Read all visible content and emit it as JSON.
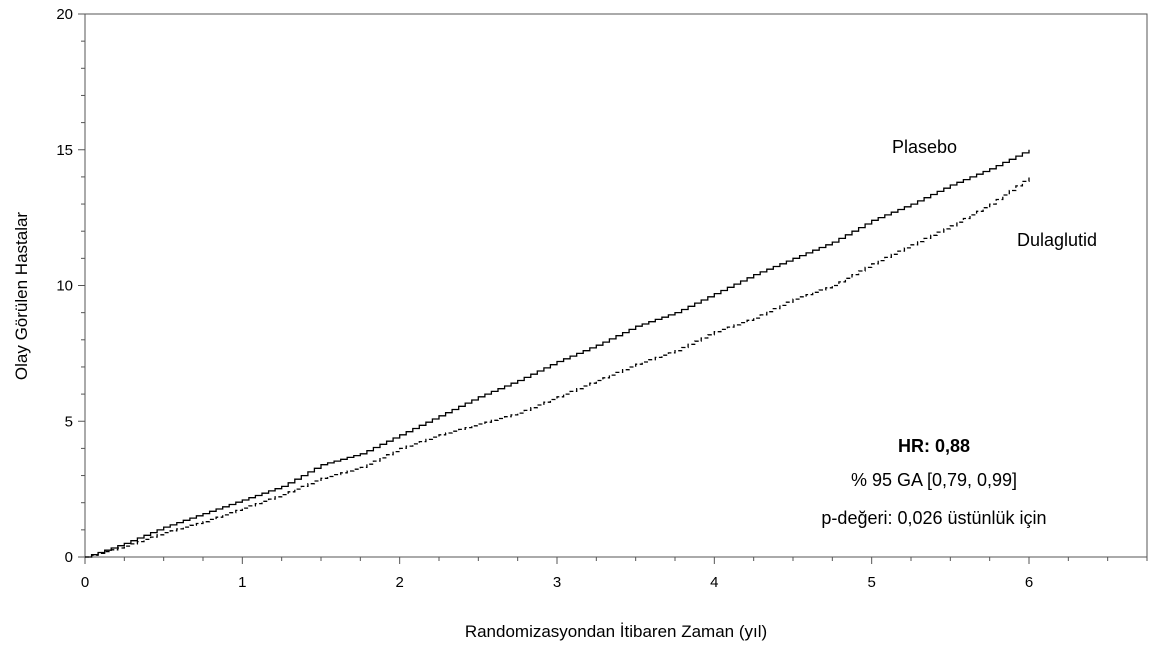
{
  "chart_data": {
    "type": "line",
    "xlabel": "Randomizasyondan İtibaren Zaman (yıl)",
    "ylabel": "Olay Görülen Hastalar",
    "xlim": [
      0,
      6.75
    ],
    "ylim": [
      0,
      20
    ],
    "x_ticks": [
      0,
      1,
      2,
      3,
      4,
      5,
      6
    ],
    "y_ticks": [
      0,
      5,
      10,
      15,
      20
    ],
    "grid": false,
    "legend": "inline labels at line ends",
    "series": [
      {
        "name": "Plasebo",
        "style": "solid",
        "color": "#000000",
        "x": [
          0,
          0.25,
          0.5,
          0.75,
          1.0,
          1.25,
          1.5,
          1.75,
          2.0,
          2.25,
          2.5,
          2.75,
          3.0,
          3.25,
          3.5,
          3.75,
          4.0,
          4.25,
          4.5,
          4.75,
          5.0,
          5.25,
          5.5,
          5.75,
          6.0
        ],
        "y": [
          0,
          0.5,
          1.1,
          1.6,
          2.1,
          2.6,
          3.4,
          3.8,
          4.5,
          5.2,
          5.9,
          6.5,
          7.2,
          7.8,
          8.5,
          9.0,
          9.7,
          10.4,
          11.0,
          11.6,
          12.4,
          13.0,
          13.7,
          14.3,
          15.0
        ]
      },
      {
        "name": "Dulaglutid",
        "style": "dashed",
        "color": "#000000",
        "x": [
          0,
          0.25,
          0.5,
          0.75,
          1.0,
          1.25,
          1.5,
          1.75,
          2.0,
          2.25,
          2.5,
          2.75,
          3.0,
          3.25,
          3.5,
          3.75,
          4.0,
          4.25,
          4.5,
          4.75,
          5.0,
          5.25,
          5.5,
          5.75,
          6.0
        ],
        "y": [
          0,
          0.4,
          0.9,
          1.3,
          1.8,
          2.3,
          2.9,
          3.3,
          4.0,
          4.5,
          4.9,
          5.3,
          5.9,
          6.5,
          7.1,
          7.6,
          8.3,
          8.8,
          9.5,
          10.0,
          10.8,
          11.5,
          12.2,
          13.0,
          14.0
        ]
      }
    ],
    "annotations": {
      "hr": "HR: 0,88",
      "ci": "% 95 GA [0,79, 0,99]",
      "p": "p-değeri: 0,026 üstünlük için"
    }
  }
}
